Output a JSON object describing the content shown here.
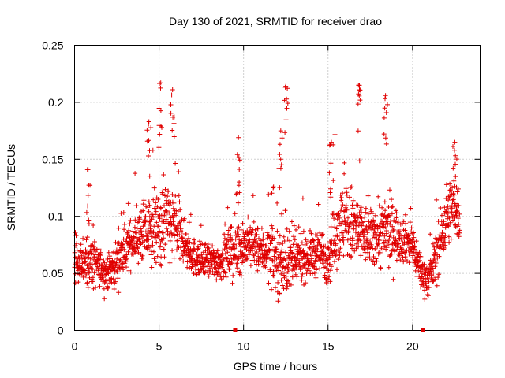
{
  "chart_data": {
    "type": "scatter",
    "title": "Day 130 of 2021, SRMTID for receiver drao",
    "xlabel": "GPS time / hours",
    "ylabel": "SRMTID / TECUs",
    "xlim": [
      0,
      24
    ],
    "ylim": [
      0,
      0.25
    ],
    "xticks": [
      0,
      5,
      10,
      15,
      20
    ],
    "xtick_labels": [
      "0",
      "5",
      "10",
      "15",
      "20"
    ],
    "yticks": [
      0,
      0.05,
      0.1,
      0.15,
      0.2,
      0.25
    ],
    "ytick_labels": [
      "0",
      "0.05",
      "0.1",
      "0.15",
      "0.2",
      "0.25"
    ],
    "grid": true,
    "legend": "none",
    "point_color": "#e00000",
    "marker": "plus",
    "gap_markers_x": [
      9.5,
      20.6
    ],
    "series_profile": {
      "name": "SRMTID",
      "x": [
        0,
        0.5,
        1,
        1.5,
        2,
        2.5,
        3,
        3.5,
        4,
        4.5,
        5,
        5.5,
        6,
        6.5,
        7,
        7.5,
        8,
        8.5,
        9,
        9.5,
        10,
        10.5,
        11,
        11.5,
        12,
        12.5,
        13,
        13.5,
        14,
        14.5,
        15,
        15.5,
        16,
        16.5,
        17,
        17.5,
        18,
        18.5,
        19,
        19.5,
        20,
        20.5,
        21,
        21.5,
        22,
        22.5,
        22.8
      ],
      "typical_y": [
        0.06,
        0.06,
        0.06,
        0.055,
        0.05,
        0.06,
        0.07,
        0.08,
        0.085,
        0.085,
        0.09,
        0.095,
        0.09,
        0.075,
        0.065,
        0.06,
        0.06,
        0.06,
        0.065,
        0.07,
        0.075,
        0.075,
        0.07,
        0.07,
        0.06,
        0.06,
        0.06,
        0.065,
        0.065,
        0.07,
        0.06,
        0.09,
        0.095,
        0.09,
        0.085,
        0.08,
        0.085,
        0.085,
        0.085,
        0.08,
        0.075,
        0.05,
        0.045,
        0.07,
        0.1,
        0.11,
        0.1
      ],
      "spread_y": [
        0.025,
        0.025,
        0.03,
        0.02,
        0.02,
        0.025,
        0.025,
        0.025,
        0.035,
        0.035,
        0.04,
        0.045,
        0.04,
        0.025,
        0.02,
        0.02,
        0.02,
        0.02,
        0.025,
        0.03,
        0.03,
        0.025,
        0.025,
        0.03,
        0.035,
        0.035,
        0.03,
        0.025,
        0.025,
        0.025,
        0.025,
        0.04,
        0.045,
        0.045,
        0.035,
        0.03,
        0.04,
        0.04,
        0.03,
        0.025,
        0.025,
        0.02,
        0.02,
        0.03,
        0.035,
        0.035,
        0.03
      ]
    },
    "peaks": [
      {
        "x": 5.1,
        "y": 0.217
      },
      {
        "x": 5.8,
        "y": 0.211
      },
      {
        "x": 12.5,
        "y": 0.214
      },
      {
        "x": 16.8,
        "y": 0.215
      },
      {
        "x": 18.4,
        "y": 0.206
      },
      {
        "x": 4.4,
        "y": 0.183
      },
      {
        "x": 9.7,
        "y": 0.169
      },
      {
        "x": 12.2,
        "y": 0.175
      },
      {
        "x": 22.5,
        "y": 0.165
      },
      {
        "x": 0.8,
        "y": 0.141
      },
      {
        "x": 15.2,
        "y": 0.165
      }
    ]
  }
}
